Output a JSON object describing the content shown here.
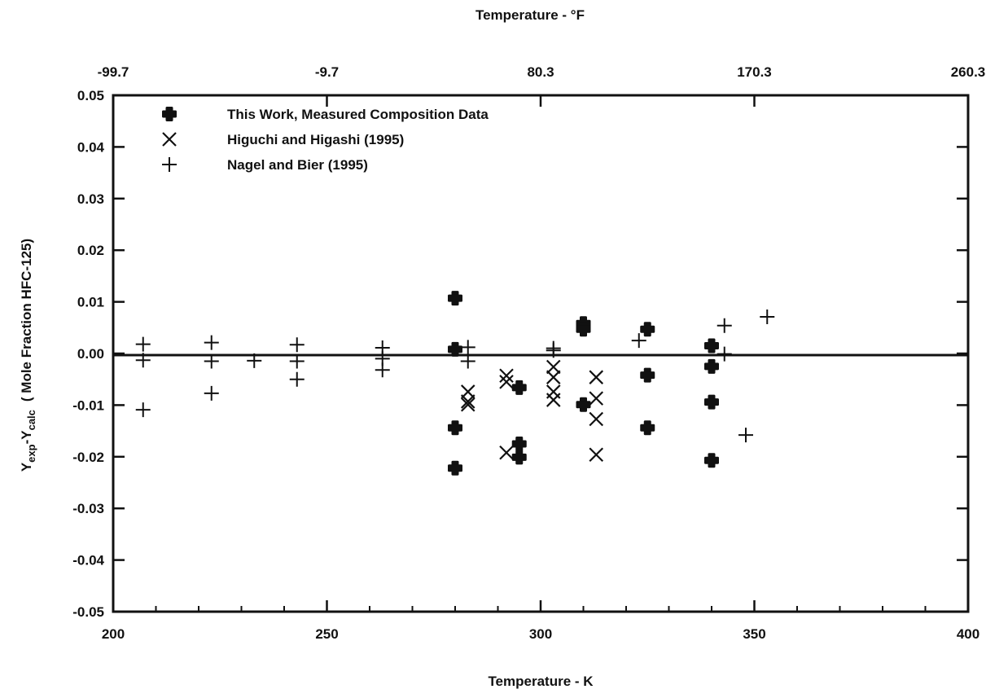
{
  "chart_data": {
    "type": "scatter",
    "xlabel": "Temperature - K",
    "x2label": "Temperature - °F",
    "ylabel_main": "Y",
    "ylabel_sub1": "exp",
    "ylabel_mid": "-Y",
    "ylabel_sub2": "calc",
    "ylabel_tail": "( Mole Fraction HFC-125)",
    "xlim": [
      200,
      400
    ],
    "ylim": [
      -0.05,
      0.05
    ],
    "x_ticks": [
      200,
      250,
      300,
      350,
      400
    ],
    "x_tick_labels": [
      "200",
      "250",
      "300",
      "350",
      "400"
    ],
    "x2_tick_labels": [
      "-99.7",
      "-9.7",
      "80.3",
      "170.3",
      "260.3"
    ],
    "y_ticks": [
      -0.05,
      -0.04,
      -0.03,
      -0.02,
      -0.01,
      0.0,
      0.01,
      0.02,
      0.03,
      0.04,
      0.05
    ],
    "y_tick_labels": [
      "-0.05",
      "-0.04",
      "-0.03",
      "-0.02",
      "-0.01",
      "0.00",
      "0.01",
      "0.02",
      "0.03",
      "0.04",
      "0.05"
    ],
    "zero_line": 0,
    "grid": false,
    "legend_position": "top-left",
    "series": [
      {
        "name": "This Work, Measured Composition Data",
        "marker": "bold-cross",
        "points": [
          [
            280,
            0.0107
          ],
          [
            280,
            0.0008
          ],
          [
            280,
            -0.0144
          ],
          [
            280,
            -0.0222
          ],
          [
            295,
            -0.0066
          ],
          [
            295,
            -0.0175
          ],
          [
            295,
            -0.0201
          ],
          [
            310,
            0.0058
          ],
          [
            310,
            0.0047
          ],
          [
            310,
            -0.0099
          ],
          [
            325,
            0.0047
          ],
          [
            325,
            -0.0042
          ],
          [
            325,
            -0.0144
          ],
          [
            340,
            0.0015
          ],
          [
            340,
            -0.0025
          ],
          [
            340,
            -0.0094
          ],
          [
            340,
            -0.0207
          ]
        ]
      },
      {
        "name": "Higuchi and Higashi (1995)",
        "marker": "x",
        "points": [
          [
            283,
            -0.0074
          ],
          [
            283,
            -0.0093
          ],
          [
            283,
            -0.0099
          ],
          [
            292,
            -0.0043
          ],
          [
            292,
            -0.0055
          ],
          [
            292,
            -0.0192
          ],
          [
            303,
            -0.0026
          ],
          [
            303,
            -0.0046
          ],
          [
            303,
            -0.0074
          ],
          [
            303,
            -0.009
          ],
          [
            313,
            -0.0046
          ],
          [
            313,
            -0.0087
          ],
          [
            313,
            -0.0127
          ],
          [
            313,
            -0.0196
          ]
        ]
      },
      {
        "name": "Nagel and Bier (1995)",
        "marker": "plus",
        "points": [
          [
            207,
            0.0018
          ],
          [
            207,
            -0.0013
          ],
          [
            207,
            -0.0109
          ],
          [
            223,
            0.0021
          ],
          [
            223,
            -0.0015
          ],
          [
            223,
            -0.0077
          ],
          [
            233,
            -0.0014
          ],
          [
            243,
            0.0017
          ],
          [
            243,
            -0.0015
          ],
          [
            243,
            -0.005
          ],
          [
            263,
            0.0011
          ],
          [
            263,
            -0.001
          ],
          [
            263,
            -0.0032
          ],
          [
            283,
            0.0012
          ],
          [
            283,
            -0.0015
          ],
          [
            303,
            0.001
          ],
          [
            303,
            0.0006
          ],
          [
            323,
            0.0025
          ],
          [
            343,
            0.0054
          ],
          [
            343,
            -0.0001
          ],
          [
            348,
            -0.0158
          ],
          [
            353,
            0.0071
          ]
        ]
      }
    ]
  }
}
